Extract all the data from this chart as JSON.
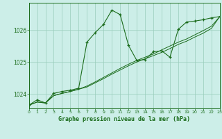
{
  "title": "Graphe pression niveau de la mer (hPa)",
  "bg_color": "#cceee8",
  "line_color": "#1a6b1a",
  "grid_color": "#99ccbb",
  "x_min": 0,
  "x_max": 23,
  "y_min": 1023.55,
  "y_max": 1026.85,
  "yticks": [
    1024,
    1025,
    1026
  ],
  "xticks": [
    0,
    1,
    2,
    3,
    4,
    5,
    6,
    7,
    8,
    9,
    10,
    11,
    12,
    13,
    14,
    15,
    16,
    17,
    18,
    19,
    20,
    21,
    22,
    23
  ],
  "series1_x": [
    0,
    1,
    2,
    3,
    4,
    5,
    6,
    7,
    8,
    9,
    10,
    11,
    12,
    13,
    14,
    15,
    16,
    17,
    18,
    19,
    20,
    21,
    22,
    23
  ],
  "series1_y": [
    1023.65,
    1023.82,
    1023.72,
    1024.02,
    1024.08,
    1024.12,
    1024.18,
    1025.62,
    1025.92,
    1026.18,
    1026.62,
    1026.48,
    1025.52,
    1025.05,
    1025.08,
    1025.32,
    1025.35,
    1025.15,
    1026.02,
    1026.25,
    1026.28,
    1026.32,
    1026.38,
    1026.42
  ],
  "series2_x": [
    0,
    1,
    2,
    3,
    4,
    5,
    6,
    7,
    8,
    9,
    10,
    11,
    12,
    13,
    14,
    15,
    16,
    17,
    18,
    19,
    20,
    21,
    22,
    23
  ],
  "series2_y": [
    1023.65,
    1023.75,
    1023.72,
    1023.95,
    1024.02,
    1024.08,
    1024.15,
    1024.22,
    1024.35,
    1024.48,
    1024.62,
    1024.75,
    1024.88,
    1025.0,
    1025.1,
    1025.2,
    1025.3,
    1025.42,
    1025.55,
    1025.65,
    1025.78,
    1025.9,
    1026.05,
    1026.42
  ],
  "series3_x": [
    0,
    1,
    2,
    3,
    4,
    5,
    6,
    7,
    8,
    9,
    10,
    11,
    12,
    13,
    14,
    15,
    16,
    17,
    18,
    19,
    20,
    21,
    22,
    23
  ],
  "series3_y": [
    1023.65,
    1023.75,
    1023.72,
    1023.95,
    1024.02,
    1024.08,
    1024.15,
    1024.25,
    1024.38,
    1024.52,
    1024.66,
    1024.8,
    1024.93,
    1025.05,
    1025.15,
    1025.25,
    1025.38,
    1025.5,
    1025.62,
    1025.72,
    1025.85,
    1025.98,
    1026.12,
    1026.42
  ]
}
